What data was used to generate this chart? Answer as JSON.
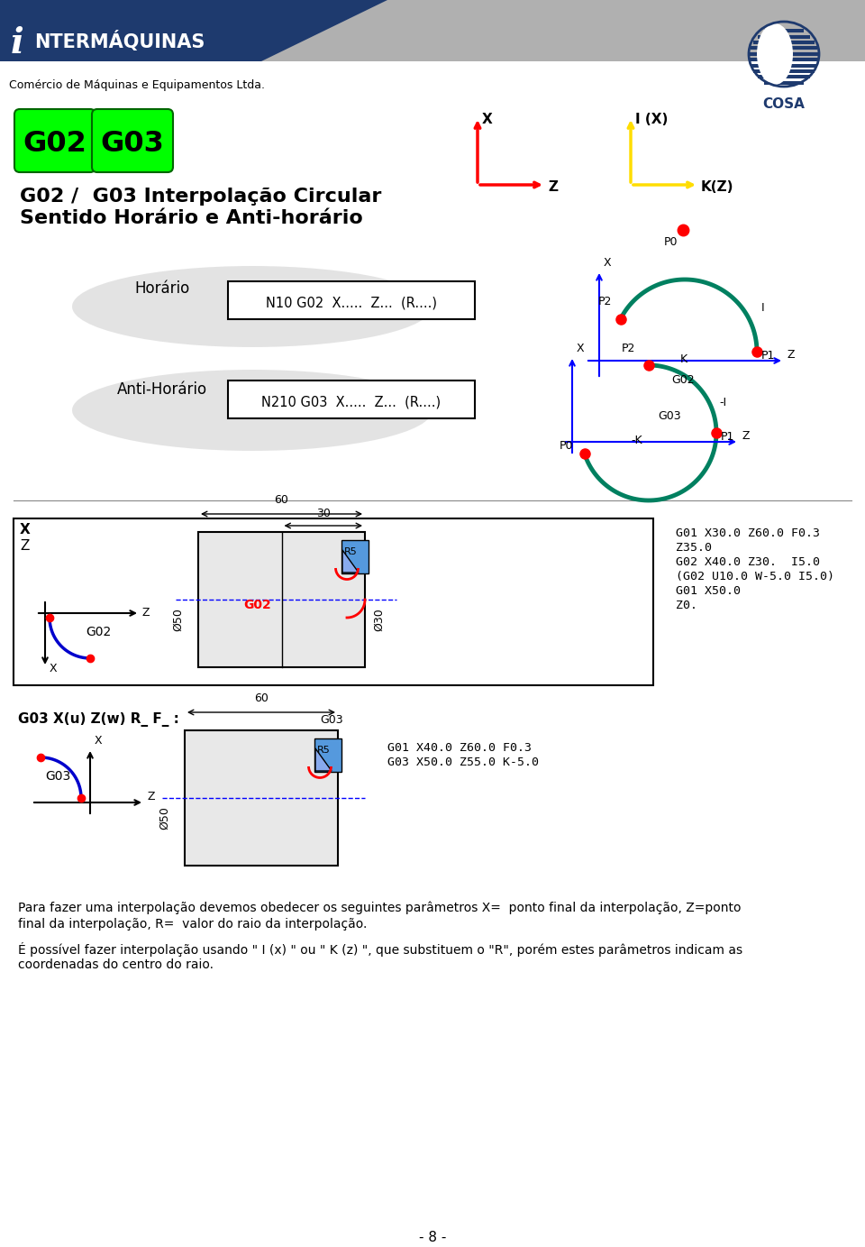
{
  "title_line1": "G02 /  G03 Interpolação Circular",
  "title_line2": "Sentido Horário e Anti-horário",
  "company_i": "i",
  "company_name": "NTERMÁQUINAS",
  "company_sub": "Comércio de Máquinas e Equipamentos Ltda.",
  "brand": "COSA",
  "g02_label": "G02",
  "g03_label": "G03",
  "horario_label": "Horário",
  "anti_horario_label": "Anti-Horário",
  "horario_code": "N10 G02  X.....  Z...  (R....)",
  "anti_horario_code": "N210 G03  X.....  Z...  (R....)",
  "g03_x_code": "G03 X(u) Z(w) R_ F_ :",
  "g02_gcode_lines": [
    "G01 X30.0 Z60.0 F0.3",
    "Z35.0",
    "G02 X40.0 Z30.  I5.0",
    "(G02 U10.0 W-5.0 I5.0)",
    "G01 X50.0",
    "Z0."
  ],
  "g03_gcode_lines": [
    "G01 X40.0 Z60.0 F0.3",
    "G03 X50.0 Z55.0 K-5.0"
  ],
  "para_text1": "Para fazer uma interpolação devemos obedecer os seguintes parâmetros X=  ponto final da interpolação, Z=ponto",
  "para_text2": "final da interpolação, R=  valor do raio da interpolação.",
  "possivel_text1": "É possível fazer interpolação usando \" I (x) \" ou \" K (z) \", que substituem o \"R\", porém estes parâmetros indicam as",
  "possivel_text2": "coordenadas do centro do raio.",
  "page_number": "- 8 -",
  "header_blue": "#1e3a6e",
  "header_gray": "#b0b0b0",
  "green_btn": "#00ff00",
  "bg_white": "#ffffff",
  "red_color": "#ff0000",
  "yellow_color": "#ffdd00",
  "green_curve": "#008060",
  "blue_curve": "#0000cc",
  "gray_bg": "#d8d8d8"
}
